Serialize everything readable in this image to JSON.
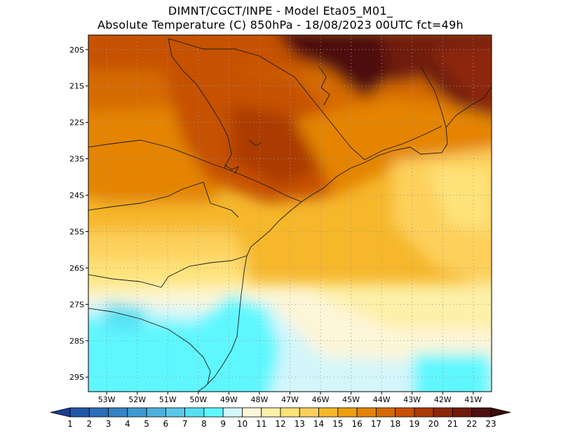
{
  "title": {
    "line1": "DIMNT/CGCT/INPE  -   Model Eta05_M01_",
    "line2": "Absolute Temperature (C) 850hPa  -   18/08/2023 00UTC fct=49h"
  },
  "map": {
    "lat_ticks": [
      "20S",
      "21S",
      "22S",
      "23S",
      "24S",
      "25S",
      "26S",
      "27S",
      "28S",
      "29S"
    ],
    "lon_ticks": [
      "53W",
      "52W",
      "51W",
      "50W",
      "49W",
      "48W",
      "47W",
      "46W",
      "45W",
      "44W",
      "43W",
      "42W",
      "41W"
    ],
    "lat_values": [
      -20,
      -21,
      -22,
      -23,
      -24,
      -25,
      -26,
      -27,
      -28,
      -29
    ],
    "lon_values": [
      -53,
      -52,
      -51,
      -50,
      -49,
      -48,
      -47,
      -46,
      -45,
      -44,
      -43,
      -42,
      -41
    ],
    "lon_range": [
      -53.6,
      -40.4
    ],
    "lat_range": [
      -19.6,
      -29.4
    ],
    "grid": "dotted"
  },
  "colorbar": {
    "labels": [
      "1",
      "2",
      "3",
      "4",
      "5",
      "6",
      "7",
      "8",
      "9",
      "10",
      "11",
      "12",
      "13",
      "14",
      "15",
      "16",
      "17",
      "18",
      "19",
      "20",
      "21",
      "22",
      "23"
    ],
    "colors": [
      "#1d3e91",
      "#2257a8",
      "#2a6db8",
      "#3583c4",
      "#3f9ad0",
      "#4cb1dd",
      "#5cc8e8",
      "#56dff2",
      "#5ef7ff",
      "#d3f6fa",
      "#fdf6d8",
      "#fdf0a8",
      "#fee37a",
      "#fdd05c",
      "#f6b72b",
      "#ee9f10",
      "#e48405",
      "#d56a03",
      "#c65103",
      "#ab3a04",
      "#8d2608",
      "#6f1a0d",
      "#4d1010"
    ],
    "under_color": "#1d3e91",
    "over_color": "#3a0c0c"
  }
}
